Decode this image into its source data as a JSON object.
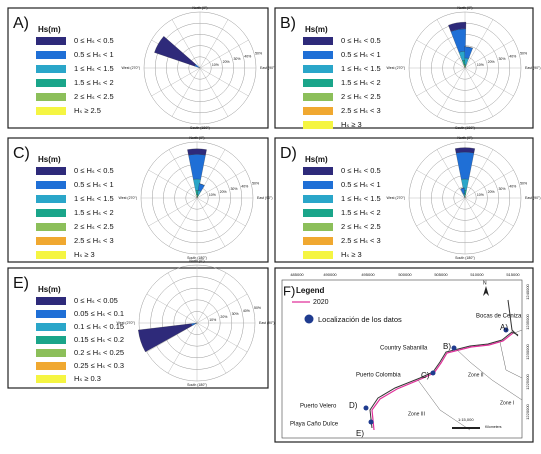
{
  "chart_data": [
    {
      "type": "rose",
      "title": "A)",
      "legend_title": "Hs(m)",
      "axis_labels": [
        "North (0°)",
        "East (90°)",
        "South (180°)",
        "West (270°)"
      ],
      "rlim": [
        0,
        50
      ],
      "rticks": [
        {
          "value": 10,
          "label": "10%"
        },
        {
          "value": 20,
          "label": "20%"
        },
        {
          "value": 30,
          "label": "30%"
        },
        {
          "value": 40,
          "label": "40%"
        },
        {
          "value": 50,
          "label": "50%"
        }
      ],
      "x": [
        300
      ],
      "series": [
        {
          "name": "0 ≤ Hₛ < 0.5",
          "color": "#2e2a7a",
          "values": [
            38
          ]
        },
        {
          "name": "0.5 ≤ Hₛ < 1",
          "color": "#1f6fd6",
          "values": [
            4
          ]
        },
        {
          "name": "1 ≤ Hₛ < 1.5",
          "color": "#2aa6c9",
          "values": [
            1
          ]
        },
        {
          "name": "1.5 ≤ Hₛ < 2",
          "color": "#1aa58a",
          "values": [
            0
          ]
        },
        {
          "name": "2 ≤ Hₛ < 2.5",
          "color": "#8cbf5a",
          "values": [
            0
          ]
        },
        {
          "name": "Hₛ ≥ 2.5",
          "color": "#f5f542",
          "values": [
            0
          ]
        }
      ]
    },
    {
      "type": "rose",
      "title": "B)",
      "legend_title": "Hs(m)",
      "axis_labels": [
        "North (0°)",
        "East (90°)",
        "South (180°)",
        "West (270°)"
      ],
      "rlim": [
        0,
        50
      ],
      "rticks": [
        {
          "value": 10,
          "label": "10%"
        },
        {
          "value": 20,
          "label": "20%"
        },
        {
          "value": 30,
          "label": "30%"
        },
        {
          "value": 40,
          "label": "40%"
        },
        {
          "value": 50,
          "label": "50%"
        }
      ],
      "x": [
        350,
        10
      ],
      "series": [
        {
          "name": "0 ≤ Hₛ < 0.5",
          "color": "#2e2a7a",
          "values": [
            6,
            0
          ]
        },
        {
          "name": "0.5 ≤ Hₛ < 1",
          "color": "#1f6fd6",
          "values": [
            20,
            10
          ]
        },
        {
          "name": "1 ≤ Hₛ < 1.5",
          "color": "#2aa6c9",
          "values": [
            8,
            6
          ]
        },
        {
          "name": "1.5 ≤ Hₛ < 2",
          "color": "#1aa58a",
          "values": [
            4,
            2
          ]
        },
        {
          "name": "2 ≤ Hₛ < 2.5",
          "color": "#8cbf5a",
          "values": [
            2,
            1
          ]
        },
        {
          "name": "2.5 ≤ Hₛ < 3",
          "color": "#f0a830",
          "values": [
            1,
            0
          ]
        },
        {
          "name": "Hₛ ≥ 3",
          "color": "#f5f542",
          "values": [
            0,
            0
          ]
        }
      ]
    },
    {
      "type": "rose",
      "title": "C)",
      "legend_title": "Hs(m)",
      "axis_labels": [
        "North (0°)",
        "East (90°)",
        "South (180°)",
        "West (270°)"
      ],
      "rlim": [
        0,
        50
      ],
      "rticks": [
        {
          "value": 10,
          "label": "10%"
        },
        {
          "value": 20,
          "label": "20%"
        },
        {
          "value": 30,
          "label": "30%"
        },
        {
          "value": 40,
          "label": "40%"
        },
        {
          "value": 50,
          "label": "50%"
        }
      ],
      "x": [
        0,
        20
      ],
      "series": [
        {
          "name": "0 ≤ Hₛ < 0.5",
          "color": "#2e2a7a",
          "values": [
            5,
            0
          ]
        },
        {
          "name": "0.5 ≤ Hₛ < 1",
          "color": "#1f6fd6",
          "values": [
            22,
            6
          ]
        },
        {
          "name": "1 ≤ Hₛ < 1.5",
          "color": "#2aa6c9",
          "values": [
            10,
            4
          ]
        },
        {
          "name": "1.5 ≤ Hₛ < 2",
          "color": "#1aa58a",
          "values": [
            4,
            2
          ]
        },
        {
          "name": "2 ≤ Hₛ < 2.5",
          "color": "#8cbf5a",
          "values": [
            2,
            1
          ]
        },
        {
          "name": "2.5 ≤ Hₛ < 3",
          "color": "#f0a830",
          "values": [
            1,
            0
          ]
        },
        {
          "name": "Hₛ ≥ 3",
          "color": "#f5f542",
          "values": [
            0,
            0
          ]
        }
      ]
    },
    {
      "type": "rose",
      "title": "D)",
      "legend_title": "Hs(m)",
      "axis_labels": [
        "North (0°)",
        "East (90°)",
        "South (180°)",
        "West (270°)"
      ],
      "rlim": [
        0,
        50
      ],
      "rticks": [
        {
          "value": 10,
          "label": "10%"
        },
        {
          "value": 20,
          "label": "20%"
        },
        {
          "value": 30,
          "label": "30%"
        },
        {
          "value": 40,
          "label": "40%"
        },
        {
          "value": 50,
          "label": "50%"
        }
      ],
      "x": [
        0,
        345
      ],
      "series": [
        {
          "name": "0 ≤ Hₛ < 0.5",
          "color": "#2e2a7a",
          "values": [
            4,
            0
          ]
        },
        {
          "name": "0.5 ≤ Hₛ < 1",
          "color": "#1f6fd6",
          "values": [
            24,
            5
          ]
        },
        {
          "name": "1 ≤ Hₛ < 1.5",
          "color": "#2aa6c9",
          "values": [
            10,
            3
          ]
        },
        {
          "name": "1.5 ≤ Hₛ < 2",
          "color": "#1aa58a",
          "values": [
            4,
            1
          ]
        },
        {
          "name": "2 ≤ Hₛ < 2.5",
          "color": "#8cbf5a",
          "values": [
            2,
            0
          ]
        },
        {
          "name": "2.5 ≤ Hₛ < 3",
          "color": "#f0a830",
          "values": [
            1,
            0
          ]
        },
        {
          "name": "Hₛ ≥ 3",
          "color": "#f5f542",
          "values": [
            0,
            0
          ]
        }
      ]
    },
    {
      "type": "rose",
      "title": "E)",
      "legend_title": "Hs(m)",
      "axis_labels": [
        "North (0°)",
        "East (90°)",
        "South (180°)",
        "West (270°)"
      ],
      "rlim": [
        0,
        50
      ],
      "rticks": [
        {
          "value": 10,
          "label": "10%"
        },
        {
          "value": 20,
          "label": "20%"
        },
        {
          "value": 30,
          "label": "30%"
        },
        {
          "value": 40,
          "label": "40%"
        },
        {
          "value": 50,
          "label": "50%"
        }
      ],
      "x": [
        252
      ],
      "series": [
        {
          "name": "0 ≤ Hₛ < 0.05",
          "color": "#2e2a7a",
          "values": [
            46
          ]
        },
        {
          "name": "0.05 ≤ Hₛ < 0.1",
          "color": "#1f6fd6",
          "values": [
            4
          ]
        },
        {
          "name": "0.1 ≤ Hₛ < 0.15",
          "color": "#2aa6c9",
          "values": [
            1
          ]
        },
        {
          "name": "0.15 ≤ Hₛ < 0.2",
          "color": "#1aa58a",
          "values": [
            0
          ]
        },
        {
          "name": "0.2 ≤ Hₛ < 0.25",
          "color": "#8cbf5a",
          "values": [
            0
          ]
        },
        {
          "name": "0.25 ≤ Hₛ < 0.3",
          "color": "#f0a830",
          "values": [
            0
          ]
        },
        {
          "name": "Hₛ ≥ 0.3",
          "color": "#f5f542",
          "values": [
            0
          ]
        }
      ]
    }
  ],
  "map": {
    "title": "F)",
    "legend_title": "Legend",
    "legend_line": "2020",
    "legend_point": "Localización de los datos",
    "top_coords": [
      "485000",
      "490000",
      "495000",
      "500000",
      "505000",
      "510000",
      "515000"
    ],
    "right_coords": [
      "1240000",
      "1235000",
      "1230000",
      "1225000",
      "1220000"
    ],
    "places": [
      "Bocas de Ceniza",
      "A)",
      "Country Sabanilla",
      "B)",
      "Puerto Colombia",
      "C)",
      "Zone II",
      "Zone I",
      "Puerto Velero",
      "D)",
      "Zone III",
      "Playa Caño Dulce",
      "E)"
    ],
    "north": "N",
    "scale": "1:15,000",
    "scale_unit": "Kilometers"
  }
}
